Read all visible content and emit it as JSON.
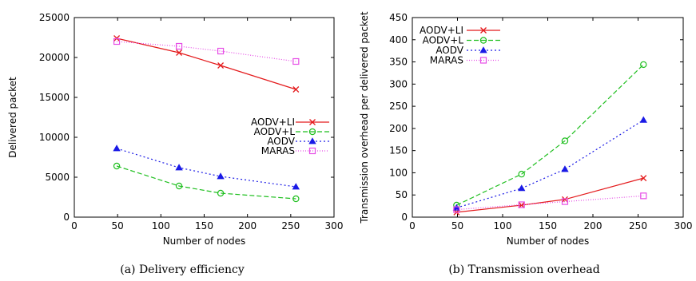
{
  "colors": {
    "AODV+LI": "#e41a1c",
    "AODV+L": "#1fbf1f",
    "AODV": "#1a1ae6",
    "MARAS": "#e64de6"
  },
  "markers": {
    "AODV+LI": "x",
    "AODV+L": "circle",
    "AODV": "triangle",
    "MARAS": "square"
  },
  "dashes": {
    "AODV+LI": "",
    "AODV+L": "6,3",
    "AODV": "2,3",
    "MARAS": "1,2"
  },
  "chart_data": [
    {
      "type": "line",
      "caption": "(a) Delivery efficiency",
      "xlabel": "Number of nodes",
      "ylabel": "Delivered packet",
      "xlim": [
        0,
        300
      ],
      "ylim": [
        0,
        25000
      ],
      "xticks": [
        0,
        50,
        100,
        150,
        200,
        250,
        300
      ],
      "yticks": [
        0,
        5000,
        10000,
        15000,
        20000,
        25000
      ],
      "legend_position": "center-right",
      "series": [
        {
          "name": "AODV+LI",
          "x": [
            49,
            121,
            169,
            256
          ],
          "y": [
            22400,
            20600,
            19000,
            16000
          ]
        },
        {
          "name": "AODV+L",
          "x": [
            49,
            121,
            169,
            256
          ],
          "y": [
            6400,
            3900,
            3000,
            2300
          ]
        },
        {
          "name": "AODV",
          "x": [
            49,
            121,
            169,
            256
          ],
          "y": [
            8600,
            6200,
            5100,
            3800
          ]
        },
        {
          "name": "MARAS",
          "x": [
            49,
            121,
            169,
            256
          ],
          "y": [
            22000,
            21400,
            20800,
            19500
          ]
        }
      ]
    },
    {
      "type": "line",
      "caption": "(b) Transmission overhead",
      "xlabel": "Number of nodes",
      "ylabel": "Transmission overhead per delivered packet",
      "xlim": [
        0,
        300
      ],
      "ylim": [
        0,
        450
      ],
      "xticks": [
        0,
        50,
        100,
        150,
        200,
        250,
        300
      ],
      "yticks": [
        0,
        50,
        100,
        150,
        200,
        250,
        300,
        350,
        400,
        450
      ],
      "legend_position": "top-left",
      "series": [
        {
          "name": "AODV+LI",
          "x": [
            49,
            121,
            169,
            256
          ],
          "y": [
            11,
            27,
            40,
            88
          ]
        },
        {
          "name": "AODV+L",
          "x": [
            49,
            121,
            169,
            256
          ],
          "y": [
            27,
            97,
            172,
            344
          ]
        },
        {
          "name": "AODV",
          "x": [
            49,
            121,
            169,
            256
          ],
          "y": [
            21,
            65,
            108,
            219
          ]
        },
        {
          "name": "MARAS",
          "x": [
            49,
            121,
            169,
            256
          ],
          "y": [
            17,
            28,
            35,
            48
          ]
        }
      ]
    }
  ]
}
